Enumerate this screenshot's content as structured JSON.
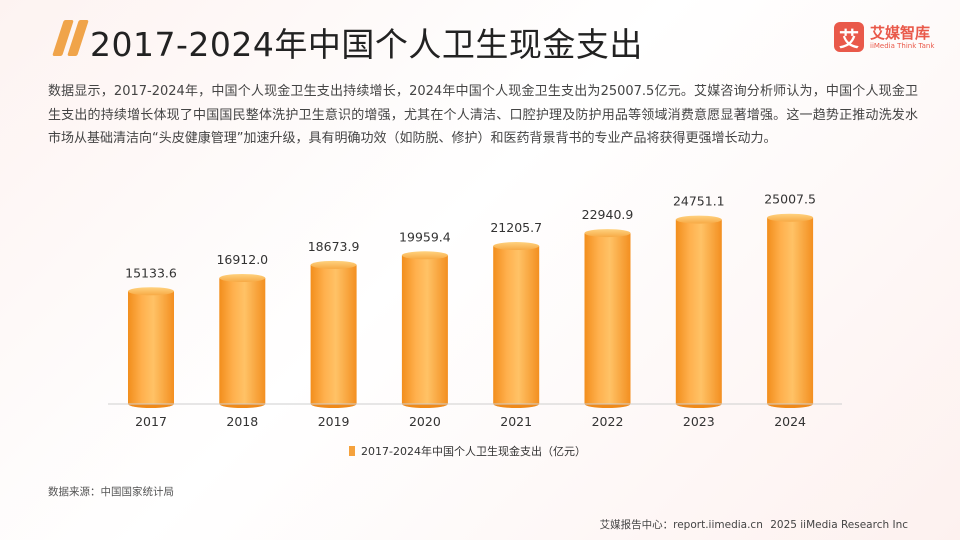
{
  "title": "2017-2024年中国个人卫生现金支出",
  "logo": {
    "mark": "艾",
    "name": "艾媒智库",
    "sub": "iiMedia Think Tank"
  },
  "description": "数据显示，2017-2024年，中国个人现金卫生支出持续增长，2024年中国个人现金卫生支出为25007.5亿元。艾媒咨询分析师认为，中国个人现金卫生支出的持续增长体现了中国国民整体洗护卫生意识的增强，尤其在个人清洁、口腔护理及防护用品等领域消费意愿显著增强。这一趋势正推动洗发水市场从基础清洁向“头皮健康管理”加速升级，具有明确功效（如防脱、修护）和医药背景背书的专业产品将获得更强增长动力。",
  "chart_data": {
    "type": "bar",
    "categories": [
      "2017",
      "2018",
      "2019",
      "2020",
      "2021",
      "2022",
      "2023",
      "2024"
    ],
    "series": [
      {
        "name": "2017-2024年中国个人卫生现金支出（亿元）",
        "values": [
          15133.6,
          16912.0,
          18673.9,
          19959.4,
          21205.7,
          22940.9,
          24751.1,
          25007.5
        ]
      }
    ],
    "value_labels": [
      "15133.6",
      "16912.0",
      "18673.9",
      "19959.4",
      "21205.7",
      "22940.9",
      "24751.1",
      "25007.5"
    ],
    "title": "",
    "xlabel": "",
    "ylabel": "",
    "legend": "bottom-center",
    "grid": false,
    "color": "#f5a23c"
  },
  "source": "数据来源：中国国家统计局",
  "footer": {
    "report_center": "艾媒报告中心：report.iimedia.cn",
    "copyright": "2025 iiMedia Research Inc"
  }
}
